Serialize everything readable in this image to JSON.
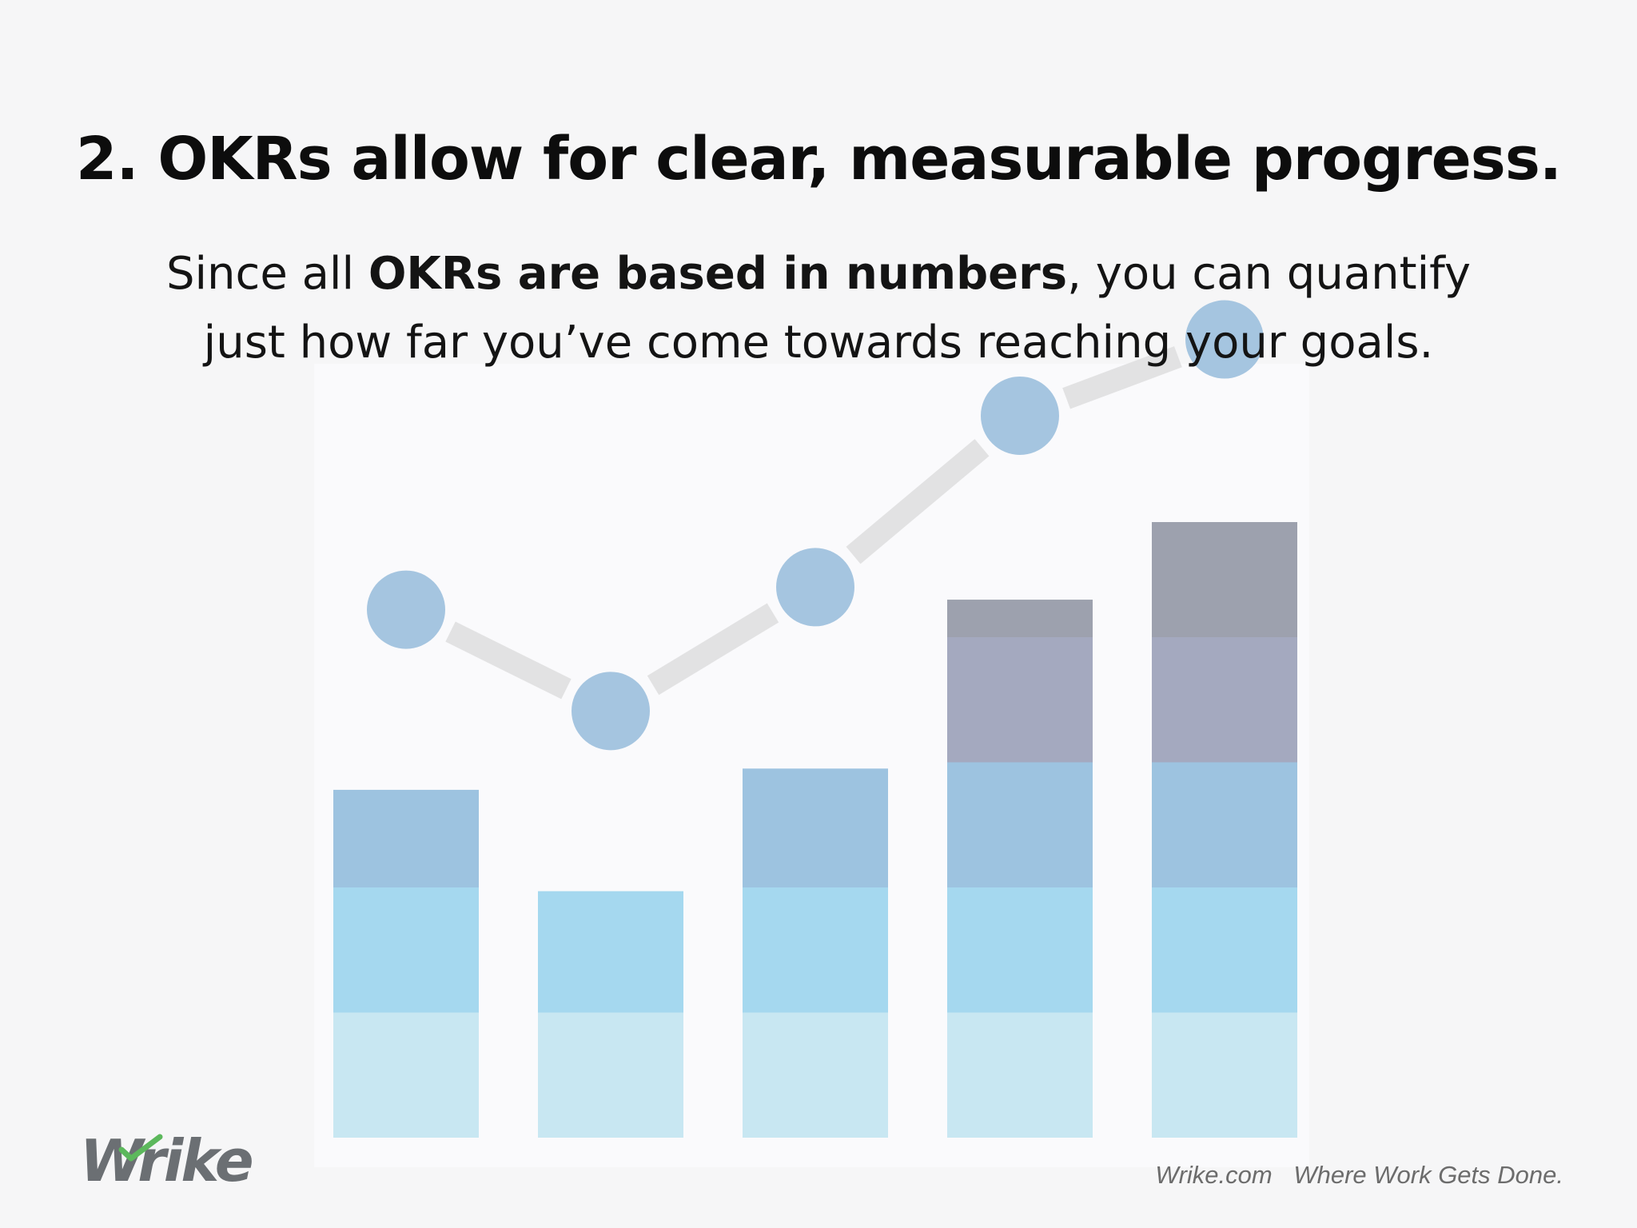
{
  "slide": {
    "title": "2. OKRs allow for clear, measurable progress.",
    "subtitle": {
      "line1_pre": "Since all ",
      "line1_bold": "OKRs are based in numbers",
      "line1_post": ", you can quantify",
      "line2": "just how far you’ve come towards reaching your goals."
    }
  },
  "branding": {
    "logo_text": "Wrike",
    "site": "Wrike.com",
    "tagline": "Where Work Gets Done."
  },
  "chart_data": {
    "type": "bar",
    "stacked": true,
    "categories": [
      "",
      "",
      "",
      "",
      ""
    ],
    "series": [
      {
        "values": [
          1,
          1,
          1,
          1,
          1
        ],
        "color": "#c8e7f2"
      },
      {
        "values": [
          1,
          0.97,
          1,
          1,
          1
        ],
        "color": "#a5d8ef"
      },
      {
        "values": [
          0.78,
          0,
          0.95,
          1,
          1
        ],
        "color": "#9dc3e0"
      },
      {
        "values": [
          0,
          0,
          0,
          1,
          1
        ],
        "color": "#a4a9bf"
      },
      {
        "values": [
          0,
          0,
          0,
          0.3,
          0.92
        ],
        "color": "#9da1ae"
      }
    ],
    "line_overlay": {
      "values": [
        4.22,
        3.41,
        4.4,
        5.77,
        6.38
      ],
      "marker_color": "#a0c2de",
      "line_color": "#e2e2e3",
      "dashed": true
    },
    "ylim": [
      0,
      7
    ],
    "grid": false,
    "legend": "none"
  }
}
